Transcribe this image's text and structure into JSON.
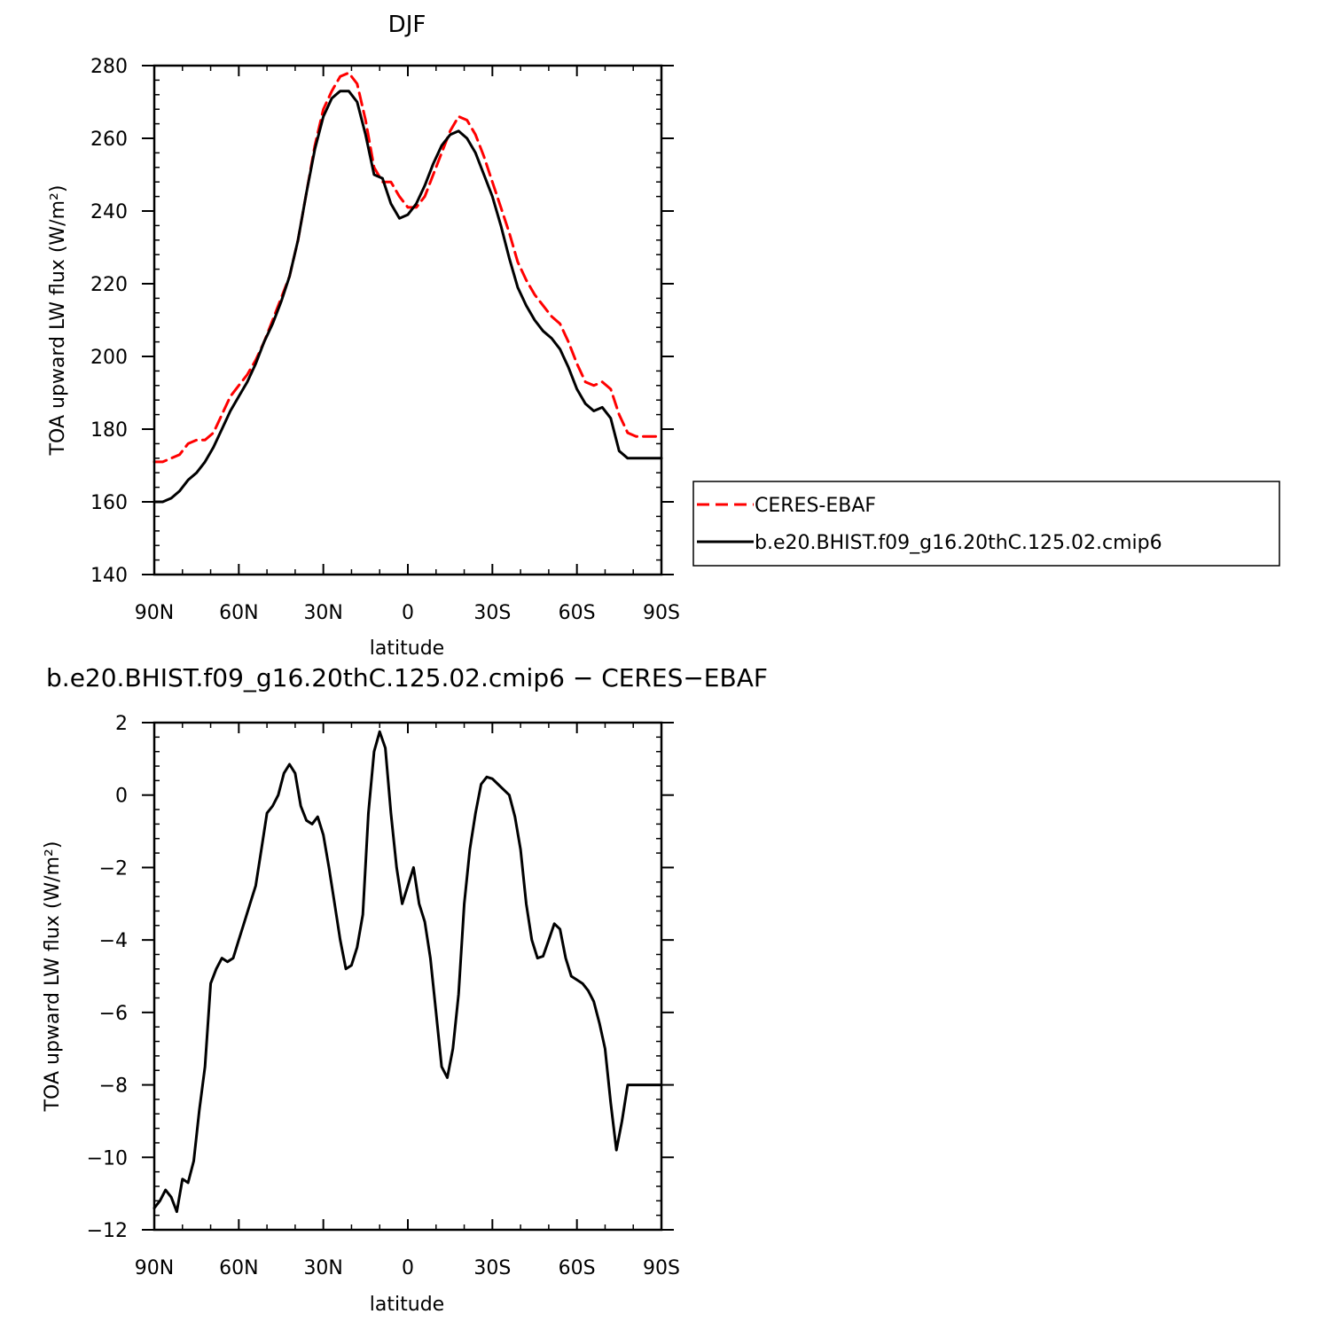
{
  "chart_data": [
    {
      "type": "line",
      "title": "DJF",
      "xlabel": "latitude",
      "ylabel": "TOA upward LW flux (W/m²)",
      "xlim": [
        90,
        -90
      ],
      "ylim": [
        140,
        280
      ],
      "xticks": [
        90,
        60,
        30,
        0,
        -30,
        -60,
        -90
      ],
      "xtick_labels": [
        "90N",
        "60N",
        "30N",
        "0",
        "30S",
        "60S",
        "90S"
      ],
      "yticks": [
        140,
        160,
        180,
        200,
        220,
        240,
        260,
        280
      ],
      "ytick_labels": [
        "140",
        "160",
        "180",
        "200",
        "220",
        "240",
        "260",
        "280"
      ],
      "grid": false,
      "legend_position": "right",
      "series": [
        {
          "name": "CERES-EBAF",
          "color": "#ff0000",
          "dash": "dashed",
          "x": [
            90,
            87,
            84,
            81,
            78,
            75,
            72,
            69,
            66,
            63,
            60,
            57,
            54,
            51,
            48,
            45,
            42,
            39,
            36,
            33,
            30,
            27,
            24,
            21,
            18,
            15,
            12,
            9,
            6,
            3,
            0,
            -3,
            -6,
            -9,
            -12,
            -15,
            -18,
            -21,
            -24,
            -27,
            -30,
            -33,
            -36,
            -39,
            -42,
            -45,
            -48,
            -51,
            -54,
            -57,
            -60,
            -63,
            -66,
            -69,
            -72,
            -75,
            -78,
            -81,
            -84,
            -87,
            -90
          ],
          "y": [
            171,
            171,
            172,
            173,
            176,
            177,
            177,
            179,
            184,
            189,
            192,
            195,
            199,
            204,
            210,
            216,
            222,
            232,
            245,
            258,
            268,
            273,
            277,
            278,
            275,
            265,
            252,
            248,
            248,
            244,
            241,
            241,
            244,
            250,
            256,
            262,
            266,
            265,
            261,
            255,
            248,
            241,
            234,
            226,
            221,
            217,
            214,
            211,
            209,
            204,
            198,
            193,
            192,
            193,
            191,
            184,
            179,
            178,
            178,
            178,
            178
          ]
        },
        {
          "name": "b.e20.BHIST.f09_g16.20thC.125.02.cmip6",
          "color": "#000000",
          "dash": "solid",
          "x": [
            90,
            87,
            84,
            81,
            78,
            75,
            72,
            69,
            66,
            63,
            60,
            57,
            54,
            51,
            48,
            45,
            42,
            39,
            36,
            33,
            30,
            27,
            24,
            21,
            18,
            15,
            12,
            9,
            6,
            3,
            0,
            -3,
            -6,
            -9,
            -12,
            -15,
            -18,
            -21,
            -24,
            -27,
            -30,
            -33,
            -36,
            -39,
            -42,
            -45,
            -48,
            -51,
            -54,
            -57,
            -60,
            -63,
            -66,
            -69,
            -72,
            -75,
            -78,
            -81,
            -84,
            -87,
            -90
          ],
          "y": [
            160,
            160,
            161,
            163,
            166,
            168,
            171,
            175,
            180,
            185,
            189,
            193,
            198,
            204,
            209,
            215,
            222,
            232,
            245,
            257,
            266,
            271,
            273,
            273,
            270,
            261,
            250,
            249,
            242,
            238,
            239,
            242,
            247,
            253,
            258,
            261,
            262,
            260,
            256,
            250,
            244,
            236,
            227,
            219,
            214,
            210,
            207,
            205,
            202,
            197,
            191,
            187,
            185,
            186,
            183,
            174,
            172,
            172,
            172,
            172,
            172
          ]
        }
      ]
    },
    {
      "type": "line",
      "title": "b.e20.BHIST.f09_g16.20thC.125.02.cmip6 − CERES−EBAF",
      "xlabel": "latitude",
      "ylabel": "TOA upward LW flux (W/m²)",
      "xlim": [
        90,
        -90
      ],
      "ylim": [
        -12,
        2
      ],
      "xticks": [
        90,
        60,
        30,
        0,
        -30,
        -60,
        -90
      ],
      "xtick_labels": [
        "90N",
        "60N",
        "30N",
        "0",
        "30S",
        "60S",
        "90S"
      ],
      "yticks": [
        -12,
        -10,
        -8,
        -6,
        -4,
        -2,
        0,
        2
      ],
      "ytick_labels": [
        "−12",
        "−10",
        "−8",
        "−6",
        "−4",
        "−2",
        "0",
        "2"
      ],
      "grid": false,
      "series": [
        {
          "color": "#000000",
          "dash": "solid",
          "x": [
            90,
            88,
            86,
            84,
            82,
            80,
            78,
            76,
            74,
            72,
            70,
            68,
            66,
            64,
            62,
            60,
            58,
            56,
            54,
            52,
            50,
            48,
            46,
            44,
            42,
            40,
            38,
            36,
            34,
            32,
            30,
            28,
            26,
            24,
            22,
            20,
            18,
            16,
            14,
            12,
            10,
            8,
            6,
            4,
            2,
            0,
            -2,
            -4,
            -6,
            -8,
            -10,
            -12,
            -14,
            -16,
            -18,
            -20,
            -22,
            -24,
            -26,
            -28,
            -30,
            -32,
            -34,
            -36,
            -38,
            -40,
            -42,
            -44,
            -46,
            -48,
            -50,
            -52,
            -54,
            -56,
            -58,
            -60,
            -62,
            -64,
            -66,
            -68,
            -70,
            -72,
            -74,
            -76,
            -78,
            -80,
            -82,
            -84,
            -86,
            -88,
            -90
          ],
          "y": [
            -11.4,
            -11.2,
            -10.9,
            -11.1,
            -11.5,
            -10.6,
            -10.7,
            -10.1,
            -8.7,
            -7.5,
            -5.2,
            -4.8,
            -4.5,
            -4.6,
            -4.5,
            -4.0,
            -3.5,
            -3.0,
            -2.5,
            -1.5,
            -0.5,
            -0.3,
            0.0,
            0.6,
            0.85,
            0.6,
            -0.3,
            -0.7,
            -0.8,
            -0.6,
            -1.1,
            -2.0,
            -3.0,
            -4.0,
            -4.8,
            -4.7,
            -4.2,
            -3.3,
            -0.5,
            1.2,
            1.75,
            1.3,
            -0.5,
            -2.0,
            -3.0,
            -2.5,
            -2.0,
            -3.0,
            -3.5,
            -4.5,
            -6.0,
            -7.5,
            -7.8,
            -7.0,
            -5.5,
            -3.0,
            -1.5,
            -0.5,
            0.3,
            0.5,
            0.45,
            0.3,
            0.15,
            0.0,
            -0.6,
            -1.5,
            -3.0,
            -4.0,
            -4.5,
            -4.45,
            -4.0,
            -3.55,
            -3.7,
            -4.5,
            -5.0,
            -5.1,
            -5.2,
            -5.4,
            -5.7,
            -6.3,
            -7.0,
            -8.5,
            -9.8,
            -9.0,
            -8.0,
            -8.0,
            -8.0,
            -8.0,
            -8.0,
            -8.0,
            -8.0
          ]
        }
      ]
    }
  ]
}
